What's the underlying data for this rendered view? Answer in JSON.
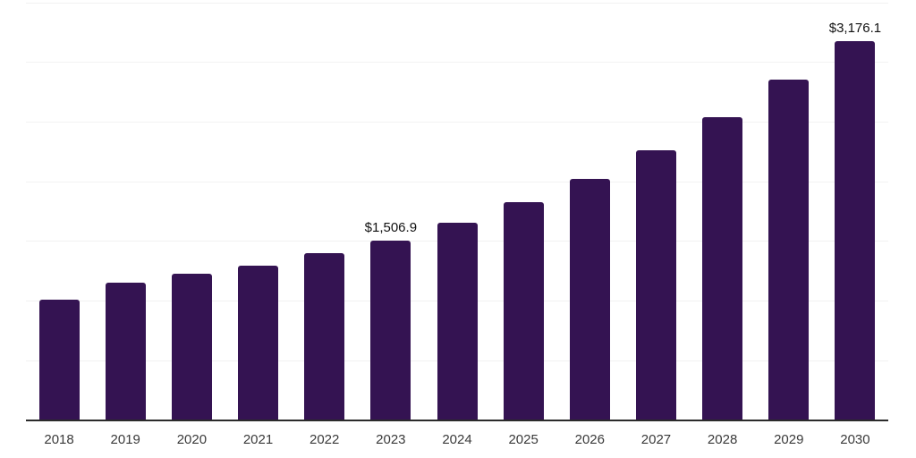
{
  "chart_data": {
    "type": "bar",
    "title": "",
    "xlabel": "",
    "ylabel": "",
    "categories": [
      "2018",
      "2019",
      "2020",
      "2021",
      "2022",
      "2023",
      "2024",
      "2025",
      "2026",
      "2027",
      "2028",
      "2029",
      "2030"
    ],
    "values": [
      1015,
      1155,
      1230,
      1300,
      1400,
      1506.9,
      1660,
      1825,
      2025,
      2265,
      2540,
      2855,
      3176.1
    ],
    "data_labels": [
      "",
      "",
      "",
      "",
      "",
      "$1,506.9",
      "",
      "",
      "",
      "",
      "",
      "",
      "$3,176.1"
    ],
    "ylim": [
      0,
      3500
    ],
    "gridline_values": [
      500,
      1000,
      1500,
      2000,
      2500,
      3000,
      3500
    ],
    "grid": true,
    "legend": false,
    "y_axis_labels_visible": false,
    "colors": {
      "bar": "#341352",
      "axis_line": "#2b2b2b",
      "gridline": "#f2f2f2",
      "tick_label": "#3a3a3a",
      "data_label": "#111111",
      "background": "#ffffff"
    }
  }
}
